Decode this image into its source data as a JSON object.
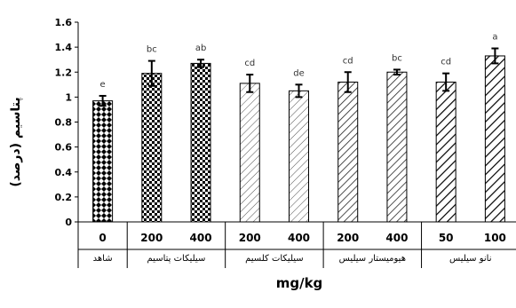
{
  "chart_data": {
    "type": "bar",
    "ylabel": "پتاسیم (درصد)",
    "xlabel": "mg/kg",
    "ylim": [
      0,
      1.6
    ],
    "yticks": [
      "0",
      "0.2",
      "0.4",
      "0.6",
      "0.8",
      "1",
      "1.2",
      "1.4",
      "1.6"
    ],
    "grid": false,
    "categories": [
      "0",
      "200",
      "400",
      "200",
      "400",
      "200",
      "400",
      "50",
      "100"
    ],
    "values": [
      0.97,
      1.19,
      1.27,
      1.11,
      1.05,
      1.12,
      1.2,
      1.12,
      1.33
    ],
    "errors": [
      0.04,
      0.1,
      0.03,
      0.07,
      0.05,
      0.08,
      0.02,
      0.07,
      0.06
    ],
    "letters": [
      "e",
      "bc",
      "ab",
      "cd",
      "de",
      "cd",
      "bc",
      "cd",
      "a"
    ],
    "groups": [
      {
        "label": "شاهد",
        "pattern": "diamond"
      },
      {
        "label": "سیلیکات پتاسیم",
        "pattern": "check"
      },
      {
        "label": "سیلیکات کلسیم",
        "pattern": "diag-light"
      },
      {
        "label": "هیومیستار سیلیس",
        "pattern": "diag-mid"
      },
      {
        "label": "نانو سیلیس",
        "pattern": "diag-dark"
      }
    ],
    "group_sizes": [
      1,
      2,
      2,
      2,
      2
    ],
    "colors": {
      "bar_fill": "#000000",
      "bar_bg": "#ffffff",
      "axis": "#000000"
    }
  }
}
